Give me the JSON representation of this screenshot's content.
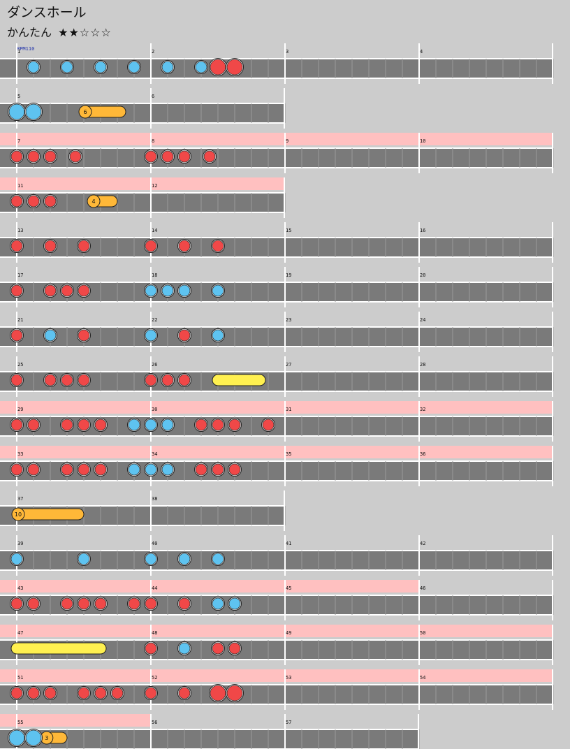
{
  "song": {
    "title": "ダンスホール",
    "difficulty_label": "かんたん",
    "stars": "★★☆☆☆",
    "bpm_label": "BPM110"
  },
  "colors": {
    "background": "#cccccc",
    "lane": "#7a7a7a",
    "lane_border": "#ffffff",
    "gogo": "#ffc0c0",
    "don": "#f04848",
    "ka": "#5ec3f0",
    "roll": "#ffb838",
    "big_roll": "#fff050",
    "balloon": "#ffb838"
  },
  "chart_data": {
    "type": "taiko-score",
    "beats_per_measure": 4,
    "rows": [
      {
        "measures": [
          1,
          2,
          3,
          4
        ],
        "width": 4,
        "gogo": null,
        "notes": [
          [
            0.5,
            "ka"
          ],
          [
            1.5,
            "ka"
          ],
          [
            2.5,
            "ka"
          ],
          [
            3.5,
            "ka"
          ],
          [
            4.5,
            "ka"
          ],
          [
            5.5,
            "ka"
          ],
          [
            6,
            "big-don"
          ],
          [
            6.5,
            "big-don"
          ]
        ],
        "rolls": [],
        "balloons": []
      },
      {
        "measures": [
          5,
          6
        ],
        "width": 2,
        "gogo": null,
        "notes": [
          [
            0,
            "big-ka"
          ],
          [
            0.5,
            "big-ka"
          ]
        ],
        "rolls": [],
        "balloons": [
          [
            2,
            3.25,
            "6"
          ]
        ]
      },
      {
        "measures": [
          7,
          8,
          9,
          10
        ],
        "width": 4,
        "gogo": [
          0,
          4
        ],
        "notes": [
          [
            0,
            "don"
          ],
          [
            0.5,
            "don"
          ],
          [
            1,
            "don"
          ],
          [
            1.75,
            "don"
          ],
          [
            4,
            "don"
          ],
          [
            4.5,
            "don"
          ],
          [
            5,
            "don"
          ],
          [
            5.75,
            "don"
          ]
        ],
        "rolls": [],
        "balloons": []
      },
      {
        "measures": [
          11,
          12
        ],
        "width": 2,
        "gogo": [
          0,
          2
        ],
        "notes": [
          [
            0,
            "don"
          ],
          [
            0.5,
            "don"
          ],
          [
            1,
            "don"
          ]
        ],
        "rolls": [],
        "balloons": [
          [
            2.25,
            3,
            "4"
          ]
        ]
      },
      {
        "measures": [
          13,
          14,
          15,
          16
        ],
        "width": 4,
        "gogo": null,
        "notes": [
          [
            0,
            "don"
          ],
          [
            1,
            "don"
          ],
          [
            2,
            "don"
          ],
          [
            4,
            "don"
          ],
          [
            5,
            "don"
          ],
          [
            6,
            "don"
          ]
        ],
        "rolls": [],
        "balloons": []
      },
      {
        "measures": [
          17,
          18,
          19,
          20
        ],
        "width": 4,
        "gogo": null,
        "notes": [
          [
            0,
            "don"
          ],
          [
            1,
            "don"
          ],
          [
            1.5,
            "don"
          ],
          [
            2,
            "don"
          ],
          [
            4,
            "ka"
          ],
          [
            4.5,
            "ka"
          ],
          [
            5,
            "ka"
          ],
          [
            6,
            "ka"
          ]
        ],
        "rolls": [],
        "balloons": []
      },
      {
        "measures": [
          21,
          22,
          23,
          24
        ],
        "width": 4,
        "gogo": null,
        "notes": [
          [
            0,
            "don"
          ],
          [
            1,
            "ka"
          ],
          [
            2,
            "don"
          ],
          [
            4,
            "ka"
          ],
          [
            5,
            "don"
          ],
          [
            6,
            "ka"
          ]
        ],
        "rolls": [],
        "balloons": []
      },
      {
        "measures": [
          25,
          26,
          27,
          28
        ],
        "width": 4,
        "gogo": null,
        "notes": [
          [
            0,
            "don"
          ],
          [
            1,
            "don"
          ],
          [
            1.5,
            "don"
          ],
          [
            2,
            "don"
          ],
          [
            4,
            "don"
          ],
          [
            4.5,
            "don"
          ],
          [
            5,
            "don"
          ]
        ],
        "rolls": [
          [
            6,
            7.25,
            "big"
          ]
        ],
        "balloons": []
      },
      {
        "measures": [
          29,
          30,
          31,
          32
        ],
        "width": 4,
        "gogo": [
          0,
          4
        ],
        "notes": [
          [
            0,
            "don"
          ],
          [
            0.5,
            "don"
          ],
          [
            1.5,
            "don"
          ],
          [
            2,
            "don"
          ],
          [
            2.5,
            "don"
          ],
          [
            3.5,
            "ka"
          ],
          [
            4,
            "ka"
          ],
          [
            4.5,
            "ka"
          ],
          [
            5.5,
            "don"
          ],
          [
            6,
            "don"
          ],
          [
            6.5,
            "don"
          ],
          [
            7.5,
            "don"
          ]
        ],
        "rolls": [],
        "balloons": []
      },
      {
        "measures": [
          33,
          34,
          35,
          36
        ],
        "width": 4,
        "gogo": [
          0,
          4
        ],
        "notes": [
          [
            0,
            "don"
          ],
          [
            0.5,
            "don"
          ],
          [
            1.5,
            "don"
          ],
          [
            2,
            "don"
          ],
          [
            2.5,
            "don"
          ],
          [
            3.5,
            "ka"
          ],
          [
            4,
            "ka"
          ],
          [
            4.5,
            "ka"
          ],
          [
            5.5,
            "don"
          ],
          [
            6,
            "don"
          ],
          [
            6.5,
            "don"
          ]
        ],
        "rolls": [],
        "balloons": []
      },
      {
        "measures": [
          37,
          38
        ],
        "width": 2,
        "gogo": null,
        "notes": [],
        "rolls": [],
        "balloons": [
          [
            0,
            2,
            "10"
          ]
        ]
      },
      {
        "measures": [
          39,
          40,
          41,
          42
        ],
        "width": 4,
        "gogo": null,
        "notes": [
          [
            0,
            "ka"
          ],
          [
            2,
            "ka"
          ],
          [
            4,
            "ka"
          ],
          [
            5,
            "ka"
          ],
          [
            6,
            "ka"
          ]
        ],
        "rolls": [],
        "balloons": []
      },
      {
        "measures": [
          43,
          44,
          45,
          46
        ],
        "width": 4,
        "gogo": [
          0,
          3
        ],
        "notes": [
          [
            0,
            "don"
          ],
          [
            0.5,
            "don"
          ],
          [
            1.5,
            "don"
          ],
          [
            2,
            "don"
          ],
          [
            2.5,
            "don"
          ],
          [
            3.5,
            "don"
          ],
          [
            4,
            "don"
          ],
          [
            5,
            "don"
          ],
          [
            6,
            "ka"
          ],
          [
            6.5,
            "ka"
          ]
        ],
        "rolls": [],
        "balloons": []
      },
      {
        "measures": [
          47,
          48,
          49,
          50
        ],
        "width": 4,
        "gogo": [
          0,
          4
        ],
        "notes": [
          [
            4,
            "don"
          ],
          [
            5,
            "ka"
          ],
          [
            6,
            "don"
          ],
          [
            6.5,
            "don"
          ]
        ],
        "rolls": [
          [
            0,
            2.5,
            "big"
          ]
        ],
        "balloons": []
      },
      {
        "measures": [
          51,
          52,
          53,
          54
        ],
        "width": 4,
        "gogo": [
          0,
          4
        ],
        "notes": [
          [
            0,
            "don"
          ],
          [
            0.5,
            "don"
          ],
          [
            1,
            "don"
          ],
          [
            2,
            "don"
          ],
          [
            2.5,
            "don"
          ],
          [
            3,
            "don"
          ],
          [
            4,
            "don"
          ],
          [
            5,
            "don"
          ],
          [
            6,
            "big-don"
          ],
          [
            6.5,
            "big-don"
          ]
        ],
        "rolls": [],
        "balloons": []
      },
      {
        "measures": [
          55,
          56,
          57
        ],
        "width": 3,
        "gogo": [
          0,
          1
        ],
        "notes": [
          [
            0,
            "big-ka"
          ],
          [
            0.5,
            "big-ka"
          ]
        ],
        "rolls": [],
        "balloons": [
          [
            0.85,
            1.5,
            "3"
          ]
        ]
      }
    ]
  }
}
